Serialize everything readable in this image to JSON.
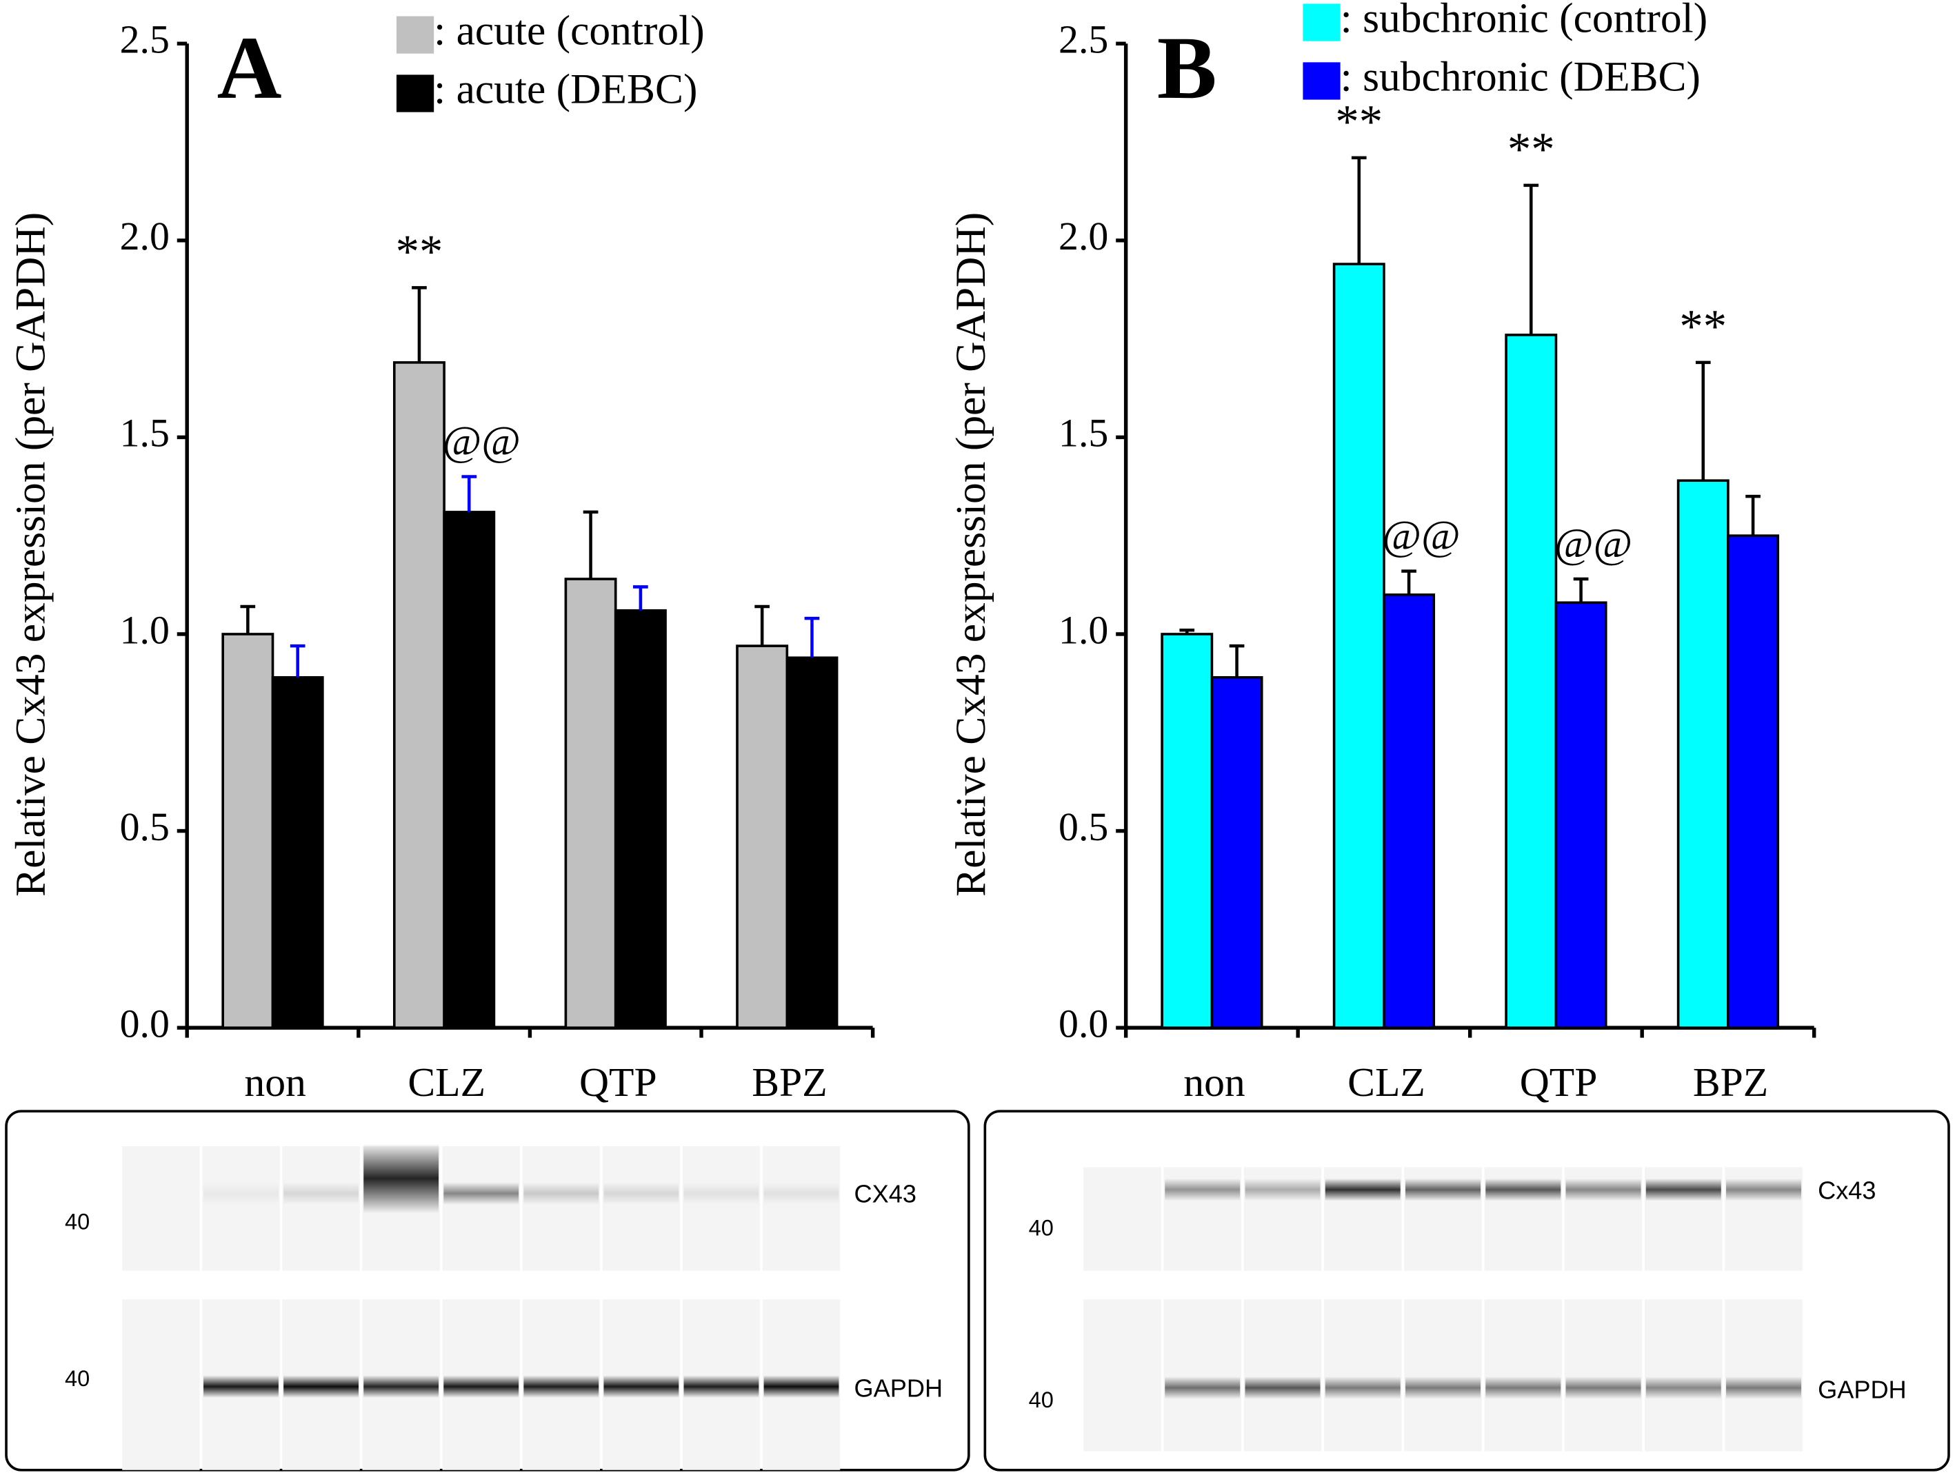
{
  "chart_data": [
    {
      "type": "bar",
      "panel_label": "A",
      "y_label": "Relative Cx43 expression (per GAPDH)",
      "categories": [
        "non",
        "CLZ",
        "QTP",
        "BPZ"
      ],
      "series": [
        {
          "name": ": acute (control)",
          "color": "#c0c0c0",
          "error_color": "#000000",
          "values": [
            1.0,
            1.69,
            1.14,
            0.97
          ],
          "errors": [
            0.07,
            0.19,
            0.17,
            0.1
          ],
          "annotations": [
            null,
            "**",
            null,
            null
          ]
        },
        {
          "name": ": acute (DEBC)",
          "color": "#000000",
          "error_color": "#0000ff",
          "values": [
            0.89,
            1.31,
            1.06,
            0.94
          ],
          "errors": [
            0.08,
            0.09,
            0.06,
            0.1
          ],
          "annotations": [
            null,
            "@@",
            null,
            null
          ]
        }
      ],
      "ylim": [
        0,
        2.5
      ],
      "yticks": [
        {
          "value": 0,
          "label": "0.0"
        },
        {
          "value": 0.5,
          "label": "0.5"
        },
        {
          "value": 1,
          "label": "1.0"
        },
        {
          "value": 1.5,
          "label": "1.5"
        },
        {
          "value": 2,
          "label": "2.0"
        },
        {
          "value": 2.5,
          "label": "2.5"
        }
      ]
    },
    {
      "type": "bar",
      "panel_label": "B",
      "y_label": "Relative Cx43 expression (per GAPDH)",
      "categories": [
        "non",
        "CLZ",
        "QTP",
        "BPZ"
      ],
      "series": [
        {
          "name": ": subchronic (control)",
          "color": "#00ffff",
          "error_color": "#000000",
          "values": [
            1.0,
            1.94,
            1.76,
            1.39
          ],
          "errors": [
            0.01,
            0.27,
            0.38,
            0.3
          ],
          "annotations": [
            null,
            "**",
            "**",
            "**"
          ]
        },
        {
          "name": ": subchronic (DEBC)",
          "color": "#0000ff",
          "error_color": "#000000",
          "values": [
            0.89,
            1.1,
            1.08,
            1.25
          ],
          "errors": [
            0.08,
            0.06,
            0.06,
            0.1
          ],
          "annotations": [
            null,
            "@@",
            "@@",
            null
          ]
        }
      ],
      "ylim": [
        0,
        2.5
      ],
      "yticks": [
        {
          "value": 0,
          "label": "0.0"
        },
        {
          "value": 0.5,
          "label": "0.5"
        },
        {
          "value": 1,
          "label": "1.0"
        },
        {
          "value": 1.5,
          "label": "1.5"
        },
        {
          "value": 2,
          "label": "2.0"
        },
        {
          "value": 2.5,
          "label": "2.5"
        }
      ]
    }
  ],
  "blots": [
    {
      "marker": "40",
      "band_labels": [
        "CX43",
        "GAPDH"
      ]
    },
    {
      "marker": "40",
      "band_labels": [
        "Cx43",
        "GAPDH"
      ]
    }
  ]
}
